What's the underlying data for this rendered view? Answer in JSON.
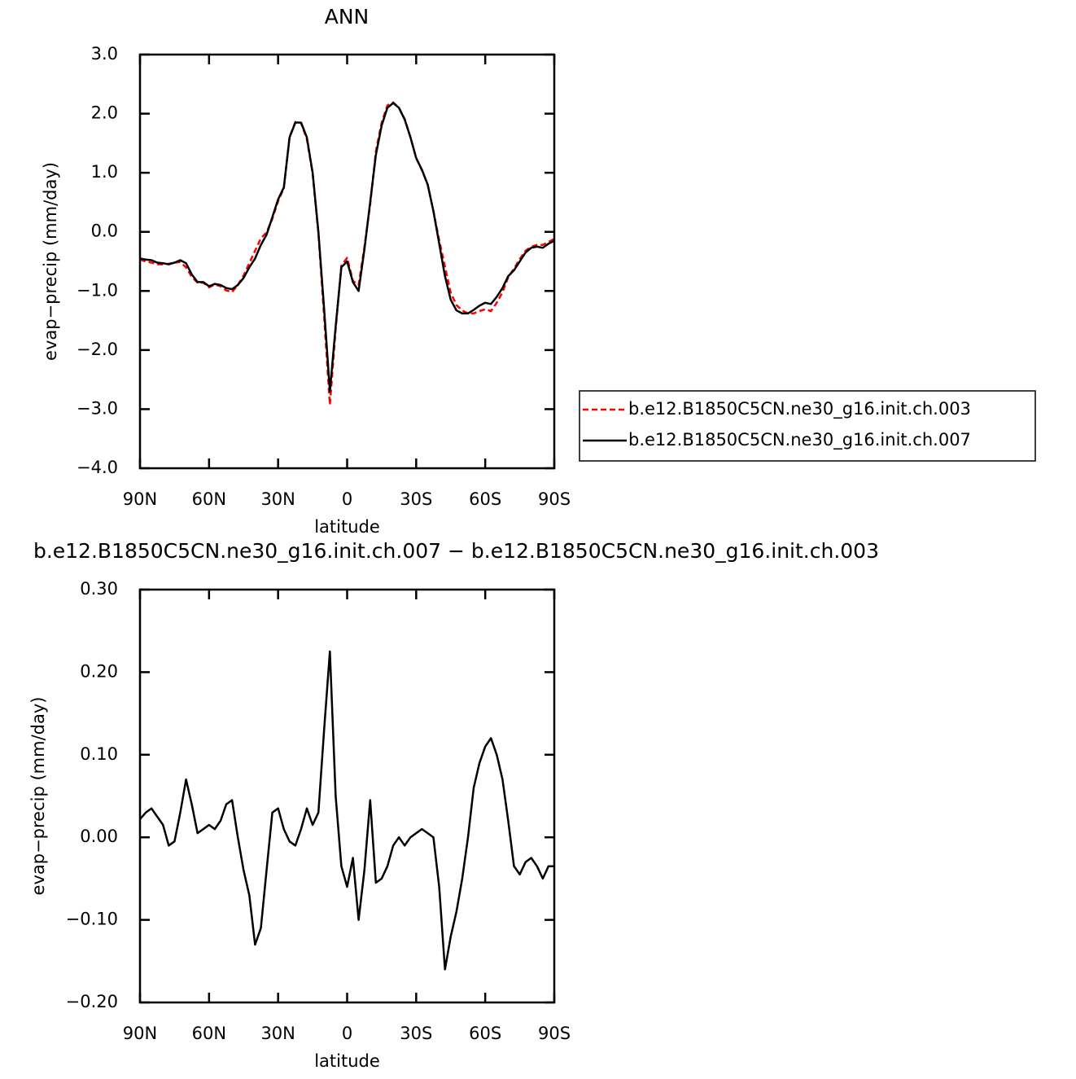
{
  "chart_data": [
    {
      "type": "line",
      "title": "ANN",
      "xlabel": "latitude",
      "ylabel": "evap−precip (mm/day)",
      "x": [
        90,
        87.5,
        85,
        82.5,
        80,
        77.5,
        75,
        72.5,
        70,
        67.5,
        65,
        62.5,
        60,
        57.5,
        55,
        52.5,
        50,
        47.5,
        45,
        42.5,
        40,
        37.5,
        35,
        32.5,
        30,
        27.5,
        25,
        22.5,
        20,
        17.5,
        15,
        12.5,
        10,
        7.5,
        5,
        2.5,
        0,
        -2.5,
        -5,
        -7.5,
        -10,
        -12.5,
        -15,
        -17.5,
        -20,
        -22.5,
        -25,
        -27.5,
        -30,
        -32.5,
        -35,
        -37.5,
        -40,
        -42.5,
        -45,
        -47.5,
        -50,
        -52.5,
        -55,
        -57.5,
        -60,
        -62.5,
        -65,
        -67.5,
        -70,
        -72.5,
        -75,
        -77.5,
        -80,
        -82.5,
        -85,
        -87.5,
        -90
      ],
      "series": [
        {
          "name": "b.e12.B1850C5CN.ne30_g16.init.ch.003",
          "color": "#ff0000",
          "style": "dashed",
          "values": [
            -0.47,
            -0.5,
            -0.52,
            -0.55,
            -0.55,
            -0.54,
            -0.52,
            -0.51,
            -0.6,
            -0.76,
            -0.86,
            -0.86,
            -0.94,
            -0.89,
            -0.92,
            -0.99,
            -1.02,
            -0.9,
            -0.74,
            -0.53,
            -0.32,
            -0.11,
            -0.01,
            0.22,
            0.52,
            0.74,
            1.61,
            1.86,
            1.84,
            1.57,
            0.99,
            -0.03,
            -1.43,
            -2.93,
            -1.65,
            -0.57,
            -0.44,
            -0.83,
            -0.9,
            -0.26,
            0.46,
            1.36,
            1.85,
            2.14,
            2.19,
            2.1,
            1.91,
            1.6,
            1.25,
            1.04,
            0.8,
            0.35,
            -0.14,
            -0.59,
            -1.03,
            -1.24,
            -1.33,
            -1.38,
            -1.38,
            -1.34,
            -1.31,
            -1.34,
            -1.2,
            -1.02,
            -0.77,
            -0.62,
            -0.46,
            -0.32,
            -0.25,
            -0.22,
            -0.22,
            -0.17,
            -0.12
          ]
        },
        {
          "name": "b.e12.B1850C5CN.ne30_g16.init.ch.007",
          "color": "#000000",
          "style": "solid",
          "values": [
            -0.45,
            -0.47,
            -0.48,
            -0.52,
            -0.53,
            -0.55,
            -0.52,
            -0.48,
            -0.53,
            -0.72,
            -0.85,
            -0.85,
            -0.92,
            -0.88,
            -0.9,
            -0.95,
            -0.97,
            -0.9,
            -0.78,
            -0.6,
            -0.45,
            -0.22,
            -0.05,
            0.25,
            0.55,
            0.75,
            1.6,
            1.85,
            1.85,
            1.6,
            1.0,
            0.0,
            -1.3,
            -2.7,
            -1.6,
            -0.6,
            -0.5,
            -0.85,
            -1.0,
            -0.3,
            0.5,
            1.3,
            1.8,
            2.1,
            2.18,
            2.1,
            1.9,
            1.6,
            1.25,
            1.05,
            0.8,
            0.35,
            -0.2,
            -0.75,
            -1.15,
            -1.33,
            -1.38,
            -1.38,
            -1.32,
            -1.25,
            -1.2,
            -1.22,
            -1.1,
            -0.95,
            -0.75,
            -0.65,
            -0.5,
            -0.35,
            -0.27,
            -0.25,
            -0.27,
            -0.2,
            -0.15
          ]
        }
      ],
      "xlim": [
        90,
        -90
      ],
      "xticks": [
        {
          "value": 90,
          "label": "90N"
        },
        {
          "value": 60,
          "label": "60N"
        },
        {
          "value": 30,
          "label": "30N"
        },
        0,
        {
          "value": -30,
          "label": "30S"
        },
        {
          "value": -60,
          "label": "60S"
        },
        {
          "value": -90,
          "label": "90S"
        }
      ],
      "ylim": [
        -4,
        3
      ],
      "yticks": [
        {
          "value": 3,
          "label": "3.0"
        },
        {
          "value": 2,
          "label": "2.0"
        },
        {
          "value": 1,
          "label": "1.0"
        },
        {
          "value": 0,
          "label": "0.0"
        },
        {
          "value": -1,
          "label": "−1.0"
        },
        {
          "value": -2,
          "label": "−2.0"
        },
        {
          "value": -3,
          "label": "−3.0"
        },
        {
          "value": -4,
          "label": "−4.0"
        }
      ],
      "legend": "outside-right"
    },
    {
      "type": "line",
      "title": "b.e12.B1850C5CN.ne30_g16.init.ch.007 − b.e12.B1850C5CN.ne30_g16.init.ch.003",
      "xlabel": "latitude",
      "ylabel": "evap−precip (mm/day)",
      "x": [
        90,
        87.5,
        85,
        82.5,
        80,
        77.5,
        75,
        72.5,
        70,
        67.5,
        65,
        62.5,
        60,
        57.5,
        55,
        52.5,
        50,
        47.5,
        45,
        42.5,
        40,
        37.5,
        35,
        32.5,
        30,
        27.5,
        25,
        22.5,
        20,
        17.5,
        15,
        12.5,
        10,
        7.5,
        5,
        2.5,
        0,
        -2.5,
        -5,
        -7.5,
        -10,
        -12.5,
        -15,
        -17.5,
        -20,
        -22.5,
        -25,
        -27.5,
        -30,
        -32.5,
        -35,
        -37.5,
        -40,
        -42.5,
        -45,
        -47.5,
        -50,
        -52.5,
        -55,
        -57.5,
        -60,
        -62.5,
        -65,
        -67.5,
        -70,
        -72.5,
        -75,
        -77.5,
        -80,
        -82.5,
        -85,
        -87.5,
        -90
      ],
      "color": "#000000",
      "values": [
        0.022,
        0.03,
        0.035,
        0.025,
        0.015,
        -0.01,
        -0.005,
        0.03,
        0.07,
        0.04,
        0.005,
        0.01,
        0.015,
        0.01,
        0.02,
        0.04,
        0.045,
        0.0,
        -0.04,
        -0.07,
        -0.13,
        -0.11,
        -0.04,
        0.03,
        0.035,
        0.01,
        -0.005,
        -0.01,
        0.01,
        0.035,
        0.015,
        0.03,
        0.13,
        0.225,
        0.05,
        -0.035,
        -0.06,
        -0.025,
        -0.1,
        -0.04,
        0.045,
        -0.055,
        -0.05,
        -0.035,
        -0.01,
        0.0,
        -0.01,
        0.0,
        0.005,
        0.01,
        0.005,
        0.0,
        -0.06,
        -0.16,
        -0.12,
        -0.09,
        -0.05,
        0.0,
        0.06,
        0.09,
        0.11,
        0.12,
        0.1,
        0.07,
        0.02,
        -0.035,
        -0.045,
        -0.03,
        -0.025,
        -0.035,
        -0.05,
        -0.035,
        -0.035
      ],
      "xlim": [
        90,
        -90
      ],
      "xticks": [
        {
          "value": 90,
          "label": "90N"
        },
        {
          "value": 60,
          "label": "60N"
        },
        {
          "value": 30,
          "label": "30N"
        },
        0,
        {
          "value": -30,
          "label": "30S"
        },
        {
          "value": -60,
          "label": "60S"
        },
        {
          "value": -90,
          "label": "90S"
        }
      ],
      "ylim": [
        -0.2,
        0.3
      ],
      "yticks": [
        {
          "value": 0.3,
          "label": "0.30"
        },
        {
          "value": 0.2,
          "label": "0.20"
        },
        {
          "value": 0.1,
          "label": "0.10"
        },
        {
          "value": 0,
          "label": "0.00"
        },
        {
          "value": -0.1,
          "label": "−0.10"
        },
        {
          "value": -0.2,
          "label": "−0.20"
        }
      ]
    }
  ]
}
